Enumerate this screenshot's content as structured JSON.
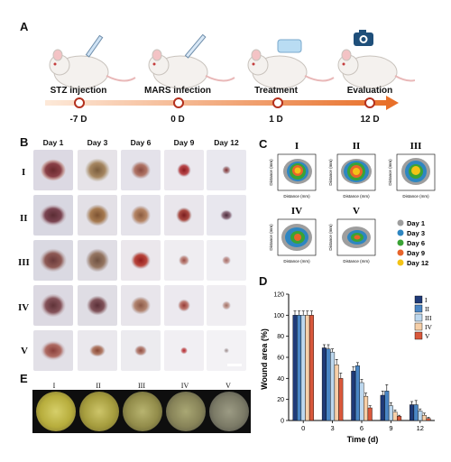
{
  "panels": {
    "a": "A",
    "b": "B",
    "c": "C",
    "d": "D",
    "e": "E"
  },
  "timeline": {
    "steps": [
      {
        "label": "STZ injection",
        "day": "-7 D"
      },
      {
        "label": "MARS infection",
        "day": "0 D"
      },
      {
        "label": "Treatment",
        "day": "1 D"
      },
      {
        "label": "Evaluation",
        "day": "12 D"
      }
    ]
  },
  "photo_grid": {
    "days": [
      "Day 1",
      "Day 3",
      "Day 6",
      "Day 9",
      "Day 12"
    ],
    "groups": [
      "I",
      "II",
      "III",
      "IV",
      "V"
    ]
  },
  "contour": {
    "groups": [
      "I",
      "II",
      "III",
      "IV",
      "V"
    ],
    "xlabel": "Distance (mm)",
    "ylabel": "Distance (mm)",
    "legend": [
      {
        "label": "Day 1",
        "color": "#9e9e9e"
      },
      {
        "label": "Day 3",
        "color": "#2e86c1"
      },
      {
        "label": "Day 6",
        "color": "#3aa335"
      },
      {
        "label": "Day 9",
        "color": "#e8642b"
      },
      {
        "label": "Day 12",
        "color": "#f3c316"
      }
    ]
  },
  "dishes": {
    "labels": [
      "I",
      "II",
      "III",
      "IV",
      "V"
    ]
  },
  "chart_data": {
    "type": "bar",
    "xlabel": "Time (d)",
    "ylabel": "Wound area (%)",
    "categories": [
      "0",
      "3",
      "6",
      "9",
      "12"
    ],
    "ylim": [
      0,
      120
    ],
    "yticks": [
      0,
      20,
      40,
      60,
      80,
      100,
      120
    ],
    "legend_position": "top-right",
    "series": [
      {
        "name": "I",
        "color": "#1f3a78",
        "values": [
          100,
          69,
          47,
          24,
          15
        ],
        "errors": [
          4,
          3,
          4,
          4,
          3
        ]
      },
      {
        "name": "II",
        "color": "#4a86c5",
        "values": [
          100,
          68,
          52,
          28,
          15
        ],
        "errors": [
          4,
          4,
          3,
          6,
          4
        ]
      },
      {
        "name": "III",
        "color": "#bcd7ee",
        "values": [
          100,
          65,
          36,
          14,
          9
        ],
        "errors": [
          4,
          3,
          3,
          3,
          2
        ]
      },
      {
        "name": "IV",
        "color": "#f6cfa8",
        "values": [
          100,
          53,
          23,
          8,
          5
        ],
        "errors": [
          4,
          5,
          3,
          2,
          2
        ]
      },
      {
        "name": "V",
        "color": "#d9583b",
        "values": [
          100,
          40,
          12,
          4,
          2
        ],
        "errors": [
          4,
          5,
          2,
          1,
          1
        ]
      }
    ]
  }
}
